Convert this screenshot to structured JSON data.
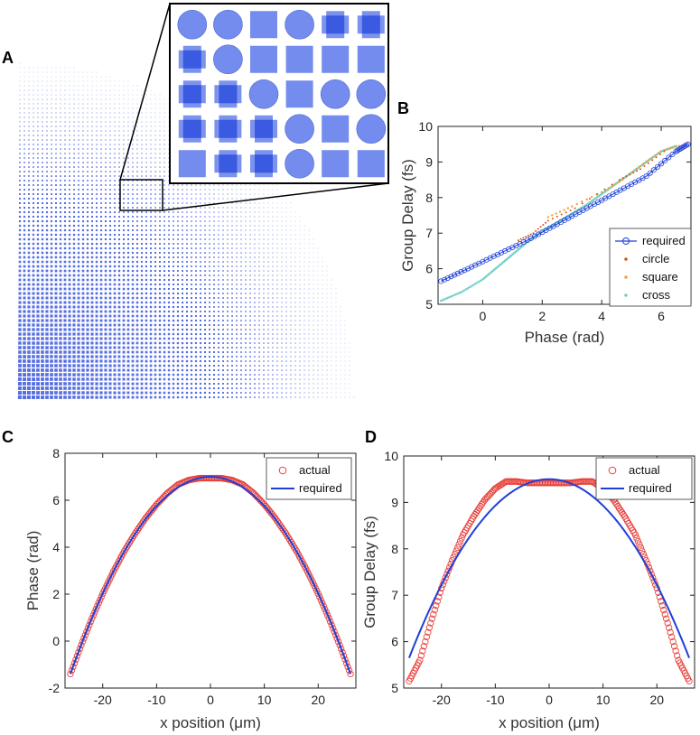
{
  "panels": {
    "a": {
      "letter": "A",
      "inset_grid": [
        [
          "circle",
          "circle",
          "square",
          "circle",
          "cross",
          "cross"
        ],
        [
          "cross",
          "circle",
          "square",
          "square",
          "square",
          "square"
        ],
        [
          "cross",
          "cross",
          "circle",
          "square",
          "circle",
          "circle"
        ],
        [
          "cross",
          "cross",
          "cross",
          "circle",
          "square",
          "circle"
        ],
        [
          "square",
          "cross",
          "cross",
          "circle",
          "square",
          "square"
        ]
      ]
    },
    "b": {
      "letter": "B"
    },
    "c": {
      "letter": "C"
    },
    "d": {
      "letter": "D"
    }
  },
  "colors": {
    "blue": "#1f3fd6",
    "red": "#e8403a",
    "orange": "#f2a33a",
    "cyan": "#74d0c8",
    "darkred": "#d9541a",
    "shape": "#5b78ea"
  },
  "chart_data": [
    {
      "id": "B",
      "type": "scatter",
      "xlabel": "Phase (rad)",
      "ylabel": "Group Delay (fs)",
      "xlim": [
        -1.5,
        7
      ],
      "ylim": [
        5,
        10
      ],
      "xticks": [
        "0",
        "2",
        "4",
        "6"
      ],
      "xtick_values": [
        0,
        2,
        4,
        6
      ],
      "yticks": [
        "5",
        "6",
        "7",
        "8",
        "9",
        "10"
      ],
      "ytick_values": [
        5,
        6,
        7,
        8,
        9,
        10
      ],
      "legend": [
        "required",
        "circle",
        "square",
        "cross"
      ],
      "series": [
        {
          "name": "required",
          "x": [
            -1.4,
            -0.5,
            0.5,
            1.5,
            2.5,
            3.5,
            4.5,
            5.5,
            6.5,
            6.9
          ],
          "y": [
            5.65,
            6.0,
            6.4,
            6.8,
            7.25,
            7.7,
            8.15,
            8.6,
            9.3,
            9.5
          ]
        },
        {
          "name": "circle",
          "x": [
            1.2,
            1.7,
            2.2,
            3.1,
            4.6,
            5.3,
            6.1
          ],
          "y": [
            6.8,
            7.0,
            7.35,
            7.7,
            8.5,
            8.8,
            9.3
          ]
        },
        {
          "name": "square",
          "x": [
            2.2,
            3.0,
            4.0,
            4.7,
            5.4,
            6.0,
            6.6
          ],
          "y": [
            7.4,
            7.7,
            8.1,
            8.45,
            8.9,
            9.25,
            9.4
          ]
        },
        {
          "name": "cross",
          "x": [
            -1.4,
            -0.7,
            0.0,
            0.5,
            1.0,
            1.5,
            2.0,
            2.5,
            3.0,
            3.5,
            4.0,
            4.5,
            5.0,
            5.5,
            6.0,
            6.5
          ],
          "y": [
            5.1,
            5.35,
            5.7,
            6.05,
            6.4,
            6.75,
            7.05,
            7.3,
            7.55,
            7.8,
            8.1,
            8.4,
            8.7,
            9.0,
            9.3,
            9.45
          ]
        }
      ]
    },
    {
      "id": "C",
      "type": "line",
      "xlabel": "x position (μm)",
      "ylabel": "Phase (rad)",
      "xlim": [
        -27,
        27
      ],
      "ylim": [
        -2,
        8
      ],
      "xticks": [
        "-20",
        "-10",
        "0",
        "10",
        "20"
      ],
      "xtick_values": [
        -20,
        -10,
        0,
        10,
        20
      ],
      "yticks": [
        "-2",
        "0",
        "2",
        "4",
        "6",
        "8"
      ],
      "ytick_values": [
        -2,
        0,
        2,
        4,
        6,
        8
      ],
      "legend": [
        "actual",
        "required"
      ],
      "series": [
        {
          "name": "actual",
          "x": [
            -26,
            -24,
            -22,
            -20,
            -18,
            -16,
            -14,
            -12,
            -10,
            -8,
            -6,
            -4,
            -2,
            0,
            2,
            4,
            6,
            8,
            10,
            12,
            14,
            16,
            18,
            20,
            22,
            24,
            26
          ],
          "y": [
            -1.4,
            -0.17,
            0.97,
            2.02,
            2.97,
            3.83,
            4.58,
            5.25,
            5.82,
            6.3,
            6.67,
            6.86,
            6.94,
            6.94,
            6.94,
            6.86,
            6.67,
            6.3,
            5.82,
            5.25,
            4.58,
            3.83,
            2.97,
            2.02,
            0.97,
            -0.17,
            -1.4
          ]
        },
        {
          "name": "required",
          "x": [
            -26,
            -22,
            -18,
            -14,
            -10,
            -6,
            -2,
            0,
            2,
            6,
            10,
            14,
            18,
            22,
            26
          ],
          "y": [
            -1.4,
            0.97,
            2.97,
            4.58,
            5.82,
            6.67,
            7.0,
            7.0,
            7.0,
            6.67,
            5.82,
            4.58,
            2.97,
            0.97,
            -1.4
          ]
        }
      ]
    },
    {
      "id": "D",
      "type": "line",
      "xlabel": "x position (μm)",
      "ylabel": "Group Delay (fs)",
      "xlim": [
        -27,
        27
      ],
      "ylim": [
        5,
        10
      ],
      "xticks": [
        "-20",
        "-10",
        "0",
        "10",
        "20"
      ],
      "xtick_values": [
        -20,
        -10,
        0,
        10,
        20
      ],
      "yticks": [
        "5",
        "6",
        "7",
        "8",
        "9",
        "10"
      ],
      "ytick_values": [
        5,
        6,
        7,
        8,
        9,
        10
      ],
      "legend": [
        "actual",
        "required"
      ],
      "series": [
        {
          "name": "actual",
          "x": [
            -26,
            -24,
            -22,
            -20,
            -18,
            -16,
            -14,
            -12,
            -10,
            -8,
            -6,
            -4,
            -2,
            0,
            2,
            4,
            6,
            8,
            10,
            12,
            14,
            16,
            18,
            20,
            22,
            24,
            26
          ],
          "y": [
            5.15,
            5.6,
            6.4,
            7.15,
            7.75,
            8.3,
            8.7,
            9.05,
            9.3,
            9.45,
            9.45,
            9.42,
            9.42,
            9.42,
            9.42,
            9.42,
            9.45,
            9.45,
            9.3,
            9.05,
            8.7,
            8.3,
            7.75,
            7.15,
            6.4,
            5.6,
            5.15
          ]
        },
        {
          "name": "required",
          "x": [
            -26,
            -22,
            -18,
            -14,
            -10,
            -6,
            -2,
            0,
            2,
            6,
            10,
            14,
            18,
            22,
            26
          ],
          "y": [
            5.65,
            6.75,
            7.65,
            8.35,
            8.9,
            9.28,
            9.48,
            9.5,
            9.48,
            9.28,
            8.9,
            8.35,
            7.65,
            6.75,
            5.65
          ]
        }
      ]
    }
  ]
}
